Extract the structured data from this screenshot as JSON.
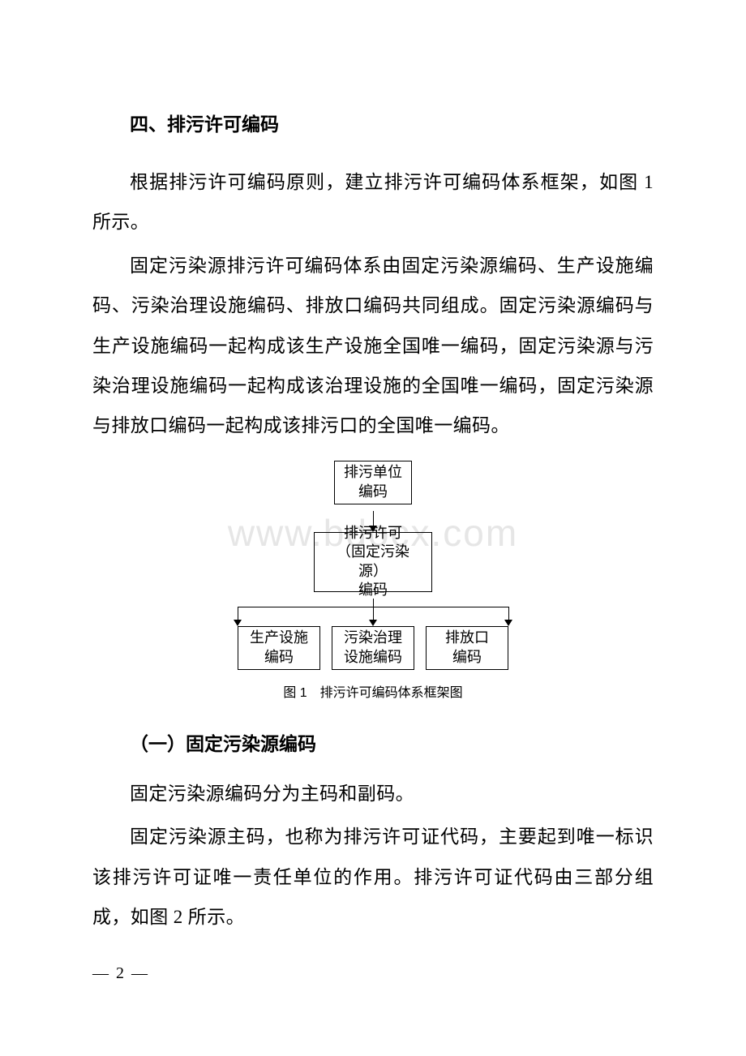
{
  "headings": {
    "h4": "四、排污许可编码",
    "sub1": "（一）固定污染源编码"
  },
  "paragraphs": {
    "p1": "根据排污许可编码原则，建立排污许可编码体系框架，如图 1所示。",
    "p2": "固定污染源排污许可编码体系由固定污染源编码、生产设施编码、污染治理设施编码、排放口编码共同组成。固定污染源编码与生产设施编码一起构成该生产设施全国唯一编码，固定污染源与污染治理设施编码一起构成该治理设施的全国唯一编码，固定污染源与排放口编码一起构成该排污口的全国唯一编码。",
    "p3": "固定污染源编码分为主码和副码。",
    "p4": "固定污染源主码，也称为排污许可证代码，主要起到唯一标识该排污许可证唯一责任单位的作用。排污许可证代码由三部分组成，如图 2 所示。"
  },
  "diagram": {
    "type": "tree",
    "caption": "图 1　排污许可编码体系框架图",
    "nodes": {
      "top": "排污单位\n编码",
      "mid": "排污许可\n（固定污染源）\n编码",
      "b1": "生产设施\n编码",
      "b2": "污染治理\n设施编码",
      "b3": "排放口\n编码"
    },
    "colors": {
      "border": "#000000",
      "text": "#000000",
      "background": "#ffffff"
    },
    "node_fontsize": 18,
    "caption_fontsize": 16,
    "border_width": 1,
    "edges": [
      {
        "from": "top",
        "to": "mid"
      },
      {
        "from": "mid",
        "to": "b1"
      },
      {
        "from": "mid",
        "to": "b2"
      },
      {
        "from": "mid",
        "to": "b3"
      }
    ]
  },
  "watermark": "www.bdocx.com",
  "page_number": "— 2 —"
}
